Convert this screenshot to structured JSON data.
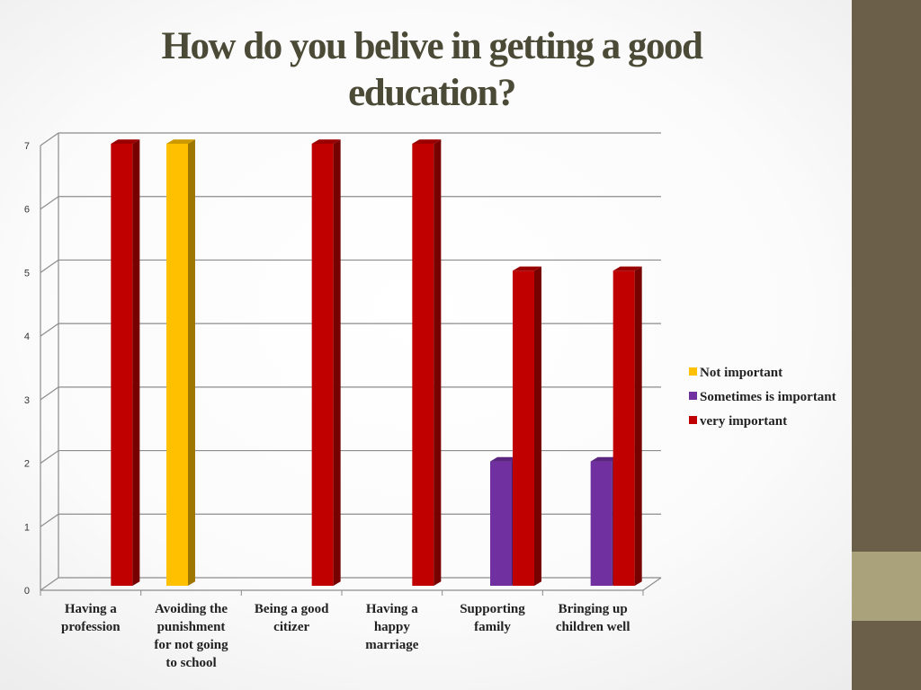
{
  "chart_data": {
    "type": "bar",
    "title": "How do you belive in getting a good education?",
    "categories": [
      [
        "Having a",
        "profession"
      ],
      [
        "Avoiding the",
        "punishment",
        "for not going",
        "to school"
      ],
      [
        "Being a good",
        "citizer"
      ],
      [
        "Having a",
        "happy",
        "marriage"
      ],
      [
        "Supporting",
        "family"
      ],
      [
        "Bringing up",
        "children well"
      ]
    ],
    "series": [
      {
        "name": "Not important",
        "color": "#ffc000",
        "values": [
          0,
          7,
          0,
          0,
          0,
          0
        ]
      },
      {
        "name": "Sometimes is important",
        "color": "#7030a0",
        "values": [
          0,
          0,
          0,
          0,
          2,
          2
        ]
      },
      {
        "name": "very important",
        "color": "#c00000",
        "values": [
          7,
          0,
          7,
          7,
          5,
          5
        ]
      }
    ],
    "yticks": [
      "0",
      "1",
      "2",
      "3",
      "4",
      "5",
      "6",
      "7"
    ],
    "ylim": [
      0,
      7
    ],
    "grid": true,
    "legend_position": "right"
  }
}
